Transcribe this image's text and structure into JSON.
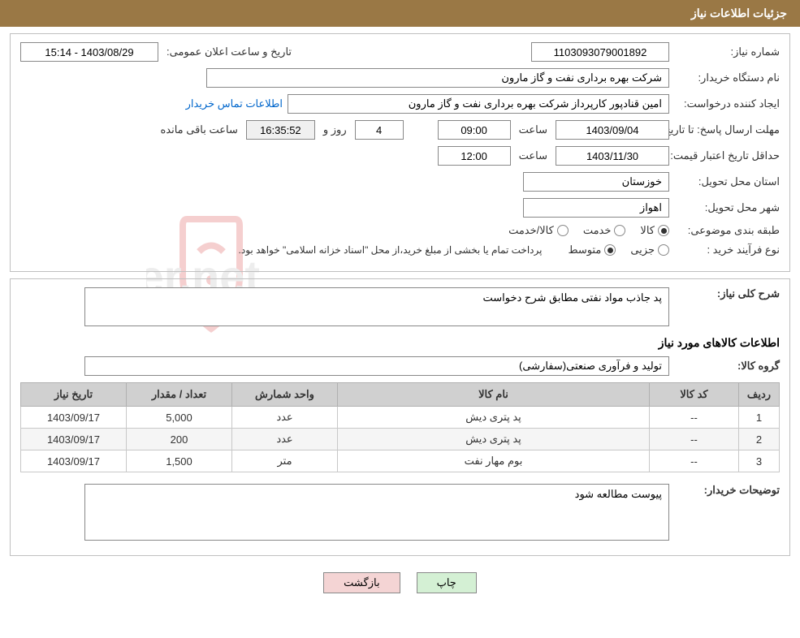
{
  "header": {
    "title": "جزئیات اطلاعات نیاز"
  },
  "fields": {
    "needNumberLabel": "شماره نیاز:",
    "needNumber": "1103093079001892",
    "announceLabel": "تاریخ و ساعت اعلان عمومی:",
    "announceDateTime": "1403/08/29 - 15:14",
    "buyerOrgLabel": "نام دستگاه خریدار:",
    "buyerOrg": "شرکت بهره برداری نفت و گاز مارون",
    "requesterLabel": "ایجاد کننده درخواست:",
    "requester": "امین قنادپور کارپرداز شرکت بهره برداری نفت و گاز مارون",
    "contactLink": "اطلاعات تماس خریدار",
    "deadlineLabel": "مهلت ارسال پاسخ:",
    "toDateLabel": "تا تاریخ:",
    "deadlineDate": "1403/09/04",
    "timeLabel": "ساعت",
    "deadlineTime": "09:00",
    "daysRemaining": "4",
    "daysAndLabel": "روز و",
    "countdownTime": "16:35:52",
    "remainingLabel": "ساعت باقی مانده",
    "minValidityLabel": "حداقل تاریخ اعتبار قیمت:",
    "validityDate": "1403/11/30",
    "validityTime": "12:00",
    "provinceLabel": "استان محل تحویل:",
    "province": "خوزستان",
    "cityLabel": "شهر محل تحویل:",
    "city": "اهواز",
    "categoryLabel": "طبقه بندی موضوعی:",
    "catGoods": "کالا",
    "catService": "خدمت",
    "catGoodsService": "کالا/خدمت",
    "purchaseTypeLabel": "نوع فرآیند خرید :",
    "ptPartial": "جزیی",
    "ptMedium": "متوسط",
    "paymentNote": "پرداخت تمام یا بخشی از مبلغ خرید،از محل \"اسناد خزانه اسلامی\" خواهد بود."
  },
  "desc": {
    "generalLabel": "شرح کلی نیاز:",
    "generalText": "پد جاذب مواد نفتی مطابق شرح دخواست",
    "itemsTitle": "اطلاعات کالاهای مورد نیاز",
    "goodsGroupLabel": "گروه کالا:",
    "goodsGroup": "تولید و فرآوری صنعتی(سفارشی)",
    "buyerNotesLabel": "توضیحات خریدار:",
    "buyerNotes": "پیوست مطالعه شود"
  },
  "table": {
    "headers": {
      "idx": "ردیف",
      "code": "کد کالا",
      "name": "نام کالا",
      "unit": "واحد شمارش",
      "qty": "تعداد / مقدار",
      "date": "تاریخ نیاز"
    },
    "rows": [
      {
        "idx": "1",
        "code": "--",
        "name": "پد پتری دیش",
        "unit": "عدد",
        "qty": "5,000",
        "date": "1403/09/17"
      },
      {
        "idx": "2",
        "code": "--",
        "name": "پد پتری دیش",
        "unit": "عدد",
        "qty": "200",
        "date": "1403/09/17"
      },
      {
        "idx": "3",
        "code": "--",
        "name": "بوم مهار نفت",
        "unit": "متر",
        "qty": "1,500",
        "date": "1403/09/17"
      }
    ]
  },
  "buttons": {
    "print": "چاپ",
    "back": "بازگشت"
  },
  "watermark": {
    "text": "AriaTender.net"
  }
}
